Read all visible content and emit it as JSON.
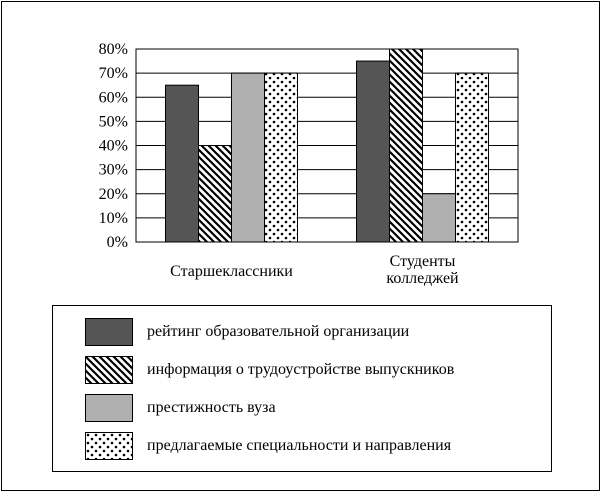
{
  "chart_data": {
    "type": "bar",
    "categories": [
      "Старшеклассники",
      "Студенты колледжей"
    ],
    "category_lines": [
      [
        "Старшеклассники"
      ],
      [
        "Студенты",
        "колледжей"
      ]
    ],
    "series": [
      {
        "name": "рейтинг образовательной организации",
        "values": [
          65,
          75
        ],
        "pattern": "solid-dark",
        "fill": "#555555"
      },
      {
        "name": "информация о трудоустройстве выпускников",
        "values": [
          40,
          80
        ],
        "pattern": "diagonal-hatch",
        "fill": "#ffffff"
      },
      {
        "name": "престижность вуза",
        "values": [
          70,
          20
        ],
        "pattern": "solid-light",
        "fill": "#b0b0b0"
      },
      {
        "name": "предлагаемые специальности и направления",
        "values": [
          70,
          70
        ],
        "pattern": "dots",
        "fill": "#ffffff"
      }
    ],
    "yticks": [
      "0%",
      "10%",
      "20%",
      "30%",
      "40%",
      "50%",
      "60%",
      "70%",
      "80%"
    ],
    "ylim": [
      0,
      80
    ],
    "grid": true,
    "legend_position": "bottom",
    "title": "",
    "xlabel": "",
    "ylabel": ""
  }
}
